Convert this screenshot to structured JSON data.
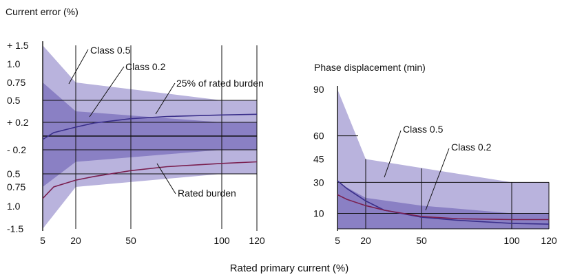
{
  "chart_data": [
    {
      "type": "area",
      "title": "Current error (%)",
      "x_ticks": [
        5,
        20,
        50,
        100,
        120
      ],
      "y_ticks": [
        "+ 1.5",
        "1.0",
        "0.75",
        "0.5",
        "+ 0.2",
        "- 0.2",
        "0.5",
        "0.75",
        "1.0",
        "-1.5"
      ],
      "y_tick_values": [
        1.5,
        1.0,
        0.75,
        0.5,
        0.2,
        -0.2,
        -0.5,
        -0.75,
        -1.0,
        -1.5
      ],
      "xlim": [
        5,
        120
      ],
      "ylim": [
        -1.5,
        1.5
      ],
      "grid": true,
      "bands": [
        {
          "name": "Class 0.5",
          "color": "#b9b3dd",
          "x": [
            5,
            20,
            100,
            120
          ],
          "upper": [
            1.5,
            0.75,
            0.5,
            0.5
          ],
          "lower": [
            -1.5,
            -0.75,
            -0.5,
            -0.5
          ]
        },
        {
          "name": "Class 0.2",
          "color": "#8a80c4",
          "x": [
            5,
            20,
            100,
            120
          ],
          "upper": [
            0.75,
            0.35,
            0.2,
            0.2
          ],
          "lower": [
            -0.75,
            -0.35,
            -0.2,
            -0.2
          ]
        }
      ],
      "series": [
        {
          "name": "25% of rated burden",
          "color": "#3a2f8a",
          "x": [
            5,
            10,
            20,
            30,
            50,
            70,
            100,
            120
          ],
          "y": [
            -0.05,
            0.05,
            0.13,
            0.19,
            0.25,
            0.28,
            0.3,
            0.31
          ]
        },
        {
          "name": "Rated burden",
          "color": "#7a2050",
          "x": [
            5,
            10,
            20,
            30,
            50,
            70,
            100,
            120
          ],
          "y": [
            -0.9,
            -0.75,
            -0.62,
            -0.55,
            -0.46,
            -0.41,
            -0.37,
            -0.35
          ]
        }
      ],
      "annotations": [
        "Class 0.5",
        "Class 0.2",
        "25% of rated burden",
        "Rated burden"
      ]
    },
    {
      "type": "area",
      "title": "Phase displacement (min)",
      "x_ticks": [
        5,
        20,
        50,
        100,
        120
      ],
      "y_ticks": [
        "90",
        "60",
        "45",
        "30",
        "10"
      ],
      "y_tick_values": [
        90,
        60,
        45,
        30,
        10
      ],
      "xlim": [
        5,
        120
      ],
      "ylim": [
        0,
        90
      ],
      "grid": true,
      "bands": [
        {
          "name": "Class 0.5",
          "color": "#b9b3dd",
          "x": [
            5,
            20,
            100,
            120
          ],
          "upper": [
            90,
            45,
            30,
            30
          ],
          "lower": [
            0,
            0,
            0,
            0
          ]
        },
        {
          "name": "Class 0.2",
          "color": "#8a80c4",
          "x": [
            5,
            20,
            50,
            100,
            120
          ],
          "upper": [
            30,
            20,
            15,
            10,
            10
          ],
          "lower": [
            0,
            0,
            0,
            0,
            0
          ]
        }
      ],
      "series": [
        {
          "name": "Class 0.2 curve",
          "color": "#3a2f8a",
          "x": [
            5,
            10,
            20,
            30,
            50,
            70,
            100,
            120
          ],
          "y": [
            31,
            26,
            18,
            12,
            7.5,
            5.5,
            3.5,
            3
          ]
        },
        {
          "name": "Rated burden",
          "color": "#7a2050",
          "x": [
            5,
            10,
            20,
            30,
            50,
            70,
            100,
            120
          ],
          "y": [
            22,
            19,
            15,
            12,
            8,
            6.5,
            6,
            6
          ]
        }
      ],
      "annotations": [
        "Class 0.5",
        "Class 0.2"
      ]
    }
  ],
  "x_axis_title": "Rated primary current (%)"
}
